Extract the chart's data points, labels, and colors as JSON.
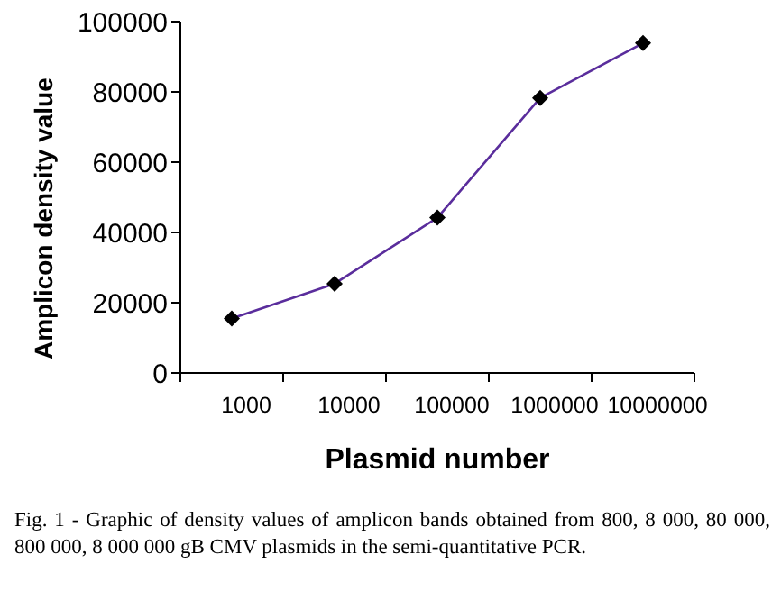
{
  "chart_data": {
    "type": "line",
    "xlabel": "Plasmid number",
    "ylabel": "Amplicon density value",
    "categories": [
      "1000",
      "10000",
      "100000",
      "1000000",
      "10000000"
    ],
    "series": [
      {
        "color": "#5a2d9c",
        "values": [
          15500,
          25400,
          44200,
          78300,
          93900
        ]
      }
    ],
    "ylim": [
      0,
      100000
    ],
    "yticks": [
      0,
      20000,
      40000,
      60000,
      80000,
      100000
    ],
    "marker": "diamond",
    "line_style": "solid",
    "grid": false,
    "legend": false,
    "annotations": [
      "Fig. 1 - Graphic of density values of amplicon bands obtained from 800, 8 000, 80 000, 800 000, 8 000 000 gB CMV plasmids in the semi-quantitative PCR."
    ]
  }
}
